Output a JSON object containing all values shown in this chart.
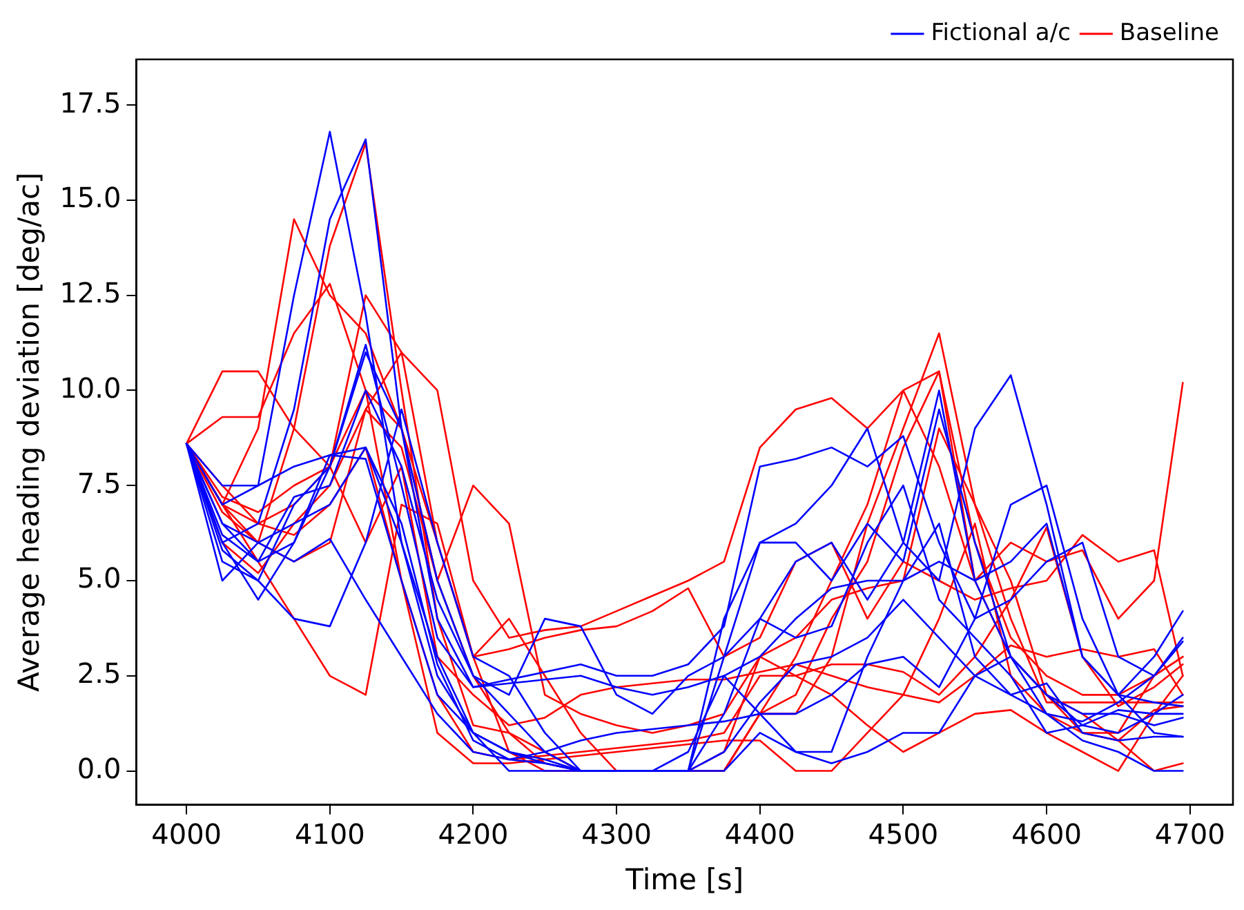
{
  "chart_data": {
    "type": "line",
    "xlabel": "Time [s]",
    "ylabel": "Average heading deviation [deg/ac]",
    "x": [
      4000,
      4025,
      4050,
      4075,
      4100,
      4125,
      4150,
      4175,
      4200,
      4225,
      4250,
      4275,
      4300,
      4325,
      4350,
      4375,
      4400,
      4425,
      4450,
      4475,
      4500,
      4525,
      4550,
      4575,
      4600,
      4625,
      4650,
      4675,
      4695
    ],
    "xlim": [
      3965,
      4730
    ],
    "xticks": [
      4000,
      4100,
      4200,
      4300,
      4400,
      4500,
      4600,
      4700
    ],
    "ylim": [
      -0.89,
      18.7
    ],
    "yticks": [
      {
        "value": 0,
        "label": "0.0"
      },
      {
        "value": 2.5,
        "label": "2.5"
      },
      {
        "value": 5,
        "label": "5.0"
      },
      {
        "value": 7.5,
        "label": "7.5"
      },
      {
        "value": 10,
        "label": "10.0"
      },
      {
        "value": 12.5,
        "label": "12.5"
      },
      {
        "value": 15,
        "label": "15.0"
      },
      {
        "value": 17.5,
        "label": "17.5"
      }
    ],
    "grid": false,
    "legend": "top right",
    "marker": "none",
    "line_style": "solid",
    "series": [
      {
        "name": "Fictional a/c",
        "color": "#0000ff",
        "values": [
          8.6,
          7.0,
          7.5,
          12.5,
          16.8,
          12.0,
          6.0,
          2.5,
          1.0,
          0,
          0,
          0,
          0,
          0,
          0,
          4.0,
          6.0,
          6.0,
          5.0,
          6.5,
          5.5,
          9.5,
          6.0,
          3.0,
          2.0,
          1.5,
          1.5,
          1.2,
          1.4
        ]
      },
      {
        "color": "#0000ff",
        "values": [
          8.6,
          6.0,
          6.5,
          9.5,
          14.5,
          16.6,
          9.0,
          4.0,
          2.2,
          2.4,
          2.6,
          2.8,
          2.5,
          2.5,
          2.8,
          3.8,
          8.0,
          8.2,
          8.5,
          8.0,
          8.8,
          6.0,
          4.0,
          4.5,
          5.5,
          6.0,
          3.0,
          2.5,
          3.5
        ]
      },
      {
        "color": "#0000ff",
        "values": [
          8.6,
          5.5,
          5.0,
          7.0,
          8.0,
          11.0,
          9.0,
          5.0,
          2.5,
          2.0,
          4.0,
          3.8,
          2.0,
          1.5,
          2.5,
          3.0,
          6.0,
          6.5,
          7.5,
          9.0,
          6.0,
          5.0,
          9.0,
          10.4,
          7.0,
          3.0,
          2.0,
          1.0,
          0.9
        ]
      },
      {
        "color": "#0000ff",
        "values": [
          8.6,
          6.2,
          5.5,
          6.0,
          8.3,
          8.5,
          6.0,
          3.0,
          1.0,
          0.5,
          0.3,
          0,
          0,
          0,
          0,
          1.5,
          4.0,
          5.5,
          6.0,
          4.5,
          6.0,
          10.0,
          5.0,
          3.0,
          2.0,
          1.2,
          1.0,
          1.5,
          2.0
        ]
      },
      {
        "color": "#0000ff",
        "values": [
          8.6,
          6.0,
          4.5,
          6.0,
          8.0,
          11.2,
          7.5,
          3.5,
          2.2,
          2.3,
          2.4,
          2.5,
          2.2,
          2.0,
          2.2,
          2.5,
          3.0,
          4.0,
          4.8,
          5.0,
          5.0,
          5.5,
          5.0,
          5.5,
          6.5,
          3.0,
          2.0,
          1.8,
          1.7
        ]
      },
      {
        "color": "#0000ff",
        "values": [
          8.6,
          6.5,
          6.0,
          5.5,
          6.1,
          4.5,
          3.0,
          1.5,
          0.5,
          0.3,
          0.2,
          0,
          0,
          0,
          0,
          0.5,
          1.8,
          2.8,
          3.0,
          3.5,
          4.5,
          3.5,
          2.5,
          2.0,
          2.3,
          1.0,
          0.8,
          0.9,
          0.9
        ]
      },
      {
        "color": "#0000ff",
        "values": [
          8.6,
          5.8,
          5.0,
          4.0,
          3.8,
          6.0,
          9.5,
          6.0,
          3.0,
          2.5,
          1.0,
          0,
          0,
          0,
          0,
          0,
          1.0,
          0.5,
          0.5,
          3.0,
          5.0,
          6.5,
          3.0,
          2.0,
          1.5,
          0.8,
          0.5,
          0,
          0
        ]
      },
      {
        "color": "#0000ff",
        "values": [
          8.6,
          7.5,
          7.5,
          8.0,
          8.3,
          8.2,
          5.0,
          2.0,
          1.0,
          0.5,
          0.2,
          0,
          0,
          0,
          0.5,
          2.5,
          1.5,
          1.5,
          2.0,
          2.8,
          3.0,
          2.2,
          4.0,
          7.0,
          7.5,
          4.0,
          2.0,
          3.0,
          4.2
        ]
      },
      {
        "color": "#0000ff",
        "values": [
          8.6,
          6.5,
          5.5,
          7.2,
          7.5,
          10.0,
          8.0,
          4.5,
          2.5,
          1.5,
          0.5,
          0,
          0,
          0,
          0,
          3.0,
          4.0,
          3.5,
          3.8,
          6.0,
          7.5,
          4.5,
          3.5,
          2.5,
          1.0,
          1.2,
          1.6,
          1.5,
          1.5
        ]
      },
      {
        "color": "#0000ff",
        "values": [
          8.6,
          5.0,
          6.0,
          6.5,
          7.0,
          8.5,
          6.5,
          2.8,
          0.8,
          0.3,
          0.5,
          0.8,
          1.0,
          1.1,
          1.2,
          1.3,
          1.5,
          0.5,
          0.2,
          0.5,
          1.0,
          1.0,
          2.5,
          3.0,
          1.5,
          1.3,
          1.8,
          2.5,
          3.4
        ]
      },
      {
        "name": "Baseline",
        "color": "#ff0000",
        "values": [
          8.6,
          7.0,
          6.0,
          9.0,
          13.8,
          16.5,
          10.0,
          4.0,
          1.2,
          1.0,
          0.5,
          0,
          0,
          0,
          0,
          0,
          1.5,
          1.5,
          3.0,
          6.5,
          9.0,
          11.5,
          7.0,
          4.0,
          1.8,
          1.8,
          1.8,
          1.8,
          1.8
        ]
      },
      {
        "color": "#ff0000",
        "values": [
          8.6,
          7.0,
          9.0,
          14.5,
          12.5,
          11.5,
          9.0,
          5.0,
          2.5,
          1.0,
          0.2,
          0,
          0,
          0,
          0,
          0,
          1.5,
          3.0,
          5.0,
          7.0,
          10.0,
          10.5,
          5.0,
          3.0,
          2.0,
          1.5,
          0.8,
          0,
          0.2
        ]
      },
      {
        "color": "#ff0000",
        "values": [
          8.6,
          10.5,
          10.5,
          9.0,
          8.0,
          12.5,
          11.0,
          6.0,
          3.0,
          0.5,
          0,
          0,
          0,
          0,
          0,
          0,
          1.5,
          2.0,
          4.0,
          5.5,
          8.5,
          10.5,
          6.0,
          3.5,
          2.5,
          2.0,
          2.0,
          2.5,
          3.0
        ]
      },
      {
        "color": "#ff0000",
        "values": [
          8.6,
          9.3,
          9.3,
          11.5,
          12.8,
          10.0,
          5.0,
          2.0,
          0.5,
          0.3,
          0.4,
          0.5,
          0.6,
          0.7,
          0.8,
          1.0,
          2.5,
          2.5,
          2.8,
          2.8,
          2.6,
          2.0,
          3.0,
          4.5,
          6.4,
          3.0,
          1.7,
          2.2,
          2.8
        ]
      },
      {
        "color": "#ff0000",
        "values": [
          8.6,
          6.8,
          6.0,
          5.5,
          6.0,
          9.5,
          11.0,
          10.0,
          5.0,
          3.5,
          3.7,
          3.8,
          4.2,
          4.6,
          5.0,
          5.5,
          8.5,
          9.5,
          9.8,
          9.0,
          10.0,
          8.0,
          5.0,
          6.0,
          5.5,
          5.8,
          4.0,
          5.0,
          10.2
        ]
      },
      {
        "color": "#ff0000",
        "values": [
          8.6,
          7.0,
          5.5,
          4.0,
          2.5,
          2.0,
          7.0,
          6.5,
          3.0,
          3.2,
          3.5,
          3.7,
          3.8,
          4.2,
          4.8,
          3.0,
          3.5,
          5.5,
          6.0,
          4.0,
          5.5,
          5.0,
          4.5,
          4.8,
          5.0,
          6.2,
          5.5,
          5.8,
          2.5
        ]
      },
      {
        "color": "#ff0000",
        "values": [
          8.6,
          7.5,
          6.5,
          7.0,
          8.0,
          6.0,
          8.0,
          3.0,
          2.0,
          1.2,
          1.4,
          2.0,
          2.2,
          2.3,
          2.4,
          2.4,
          2.6,
          2.8,
          2.5,
          2.2,
          2.0,
          1.8,
          2.5,
          3.3,
          3.0,
          3.2,
          3.0,
          3.2,
          2.0
        ]
      },
      {
        "color": "#ff0000",
        "values": [
          8.6,
          6.0,
          5.2,
          6.5,
          7.5,
          9.5,
          8.5,
          5.0,
          7.5,
          6.5,
          2.0,
          1.5,
          1.2,
          1.0,
          1.2,
          1.5,
          3.0,
          2.5,
          2.0,
          1.2,
          0.5,
          1.0,
          1.5,
          1.6,
          1.0,
          0.5,
          0,
          1.5,
          2.5
        ]
      },
      {
        "color": "#ff0000",
        "values": [
          8.6,
          7.0,
          6.5,
          6.2,
          7.0,
          8.5,
          5.0,
          1.0,
          0.2,
          0.2,
          0.3,
          0.4,
          0.5,
          0.6,
          0.7,
          0.8,
          0.8,
          0,
          0,
          1.0,
          2.0,
          4.0,
          6.5,
          2.5,
          1.5,
          1.0,
          0.8,
          1.6,
          1.7
        ]
      },
      {
        "color": "#ff0000",
        "values": [
          8.6,
          7.2,
          6.8,
          7.5,
          8.0,
          10.0,
          9.0,
          6.0,
          3.0,
          4.0,
          2.5,
          1.0,
          0,
          0,
          0,
          0.5,
          3.0,
          3.5,
          4.5,
          4.8,
          5.0,
          9.0,
          7.0,
          5.0,
          2.0,
          1.0,
          1.0,
          2.5,
          3.0
        ]
      }
    ]
  }
}
